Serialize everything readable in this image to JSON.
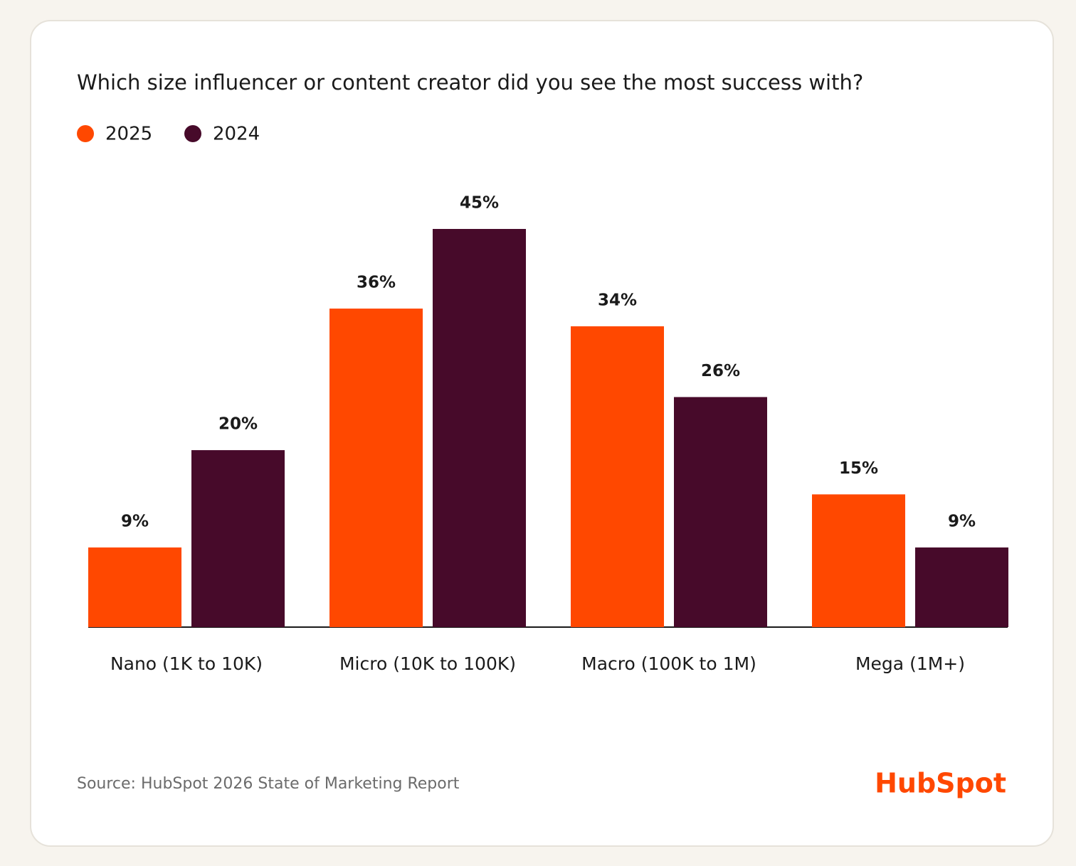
{
  "chart_data": {
    "type": "bar",
    "title": "Which size influencer or content creator did you see the most success with?",
    "categories": [
      "Nano (1K to 10K)",
      "Micro (10K to 100K)",
      "Macro (100K to 1M)",
      "Mega (1M+)"
    ],
    "series": [
      {
        "name": "2025",
        "color": "#ff4800",
        "values": [
          9,
          36,
          34,
          15
        ],
        "value_labels": [
          "9%",
          "36%",
          "34%",
          "15%"
        ]
      },
      {
        "name": "2024",
        "color": "#470a2a",
        "values": [
          20,
          45,
          26,
          9
        ],
        "value_labels": [
          "20%",
          "45%",
          "26%",
          "9%"
        ]
      }
    ],
    "source": "Source: HubSpot 2026 State of Marketing Report",
    "logo": "HubSpot"
  }
}
